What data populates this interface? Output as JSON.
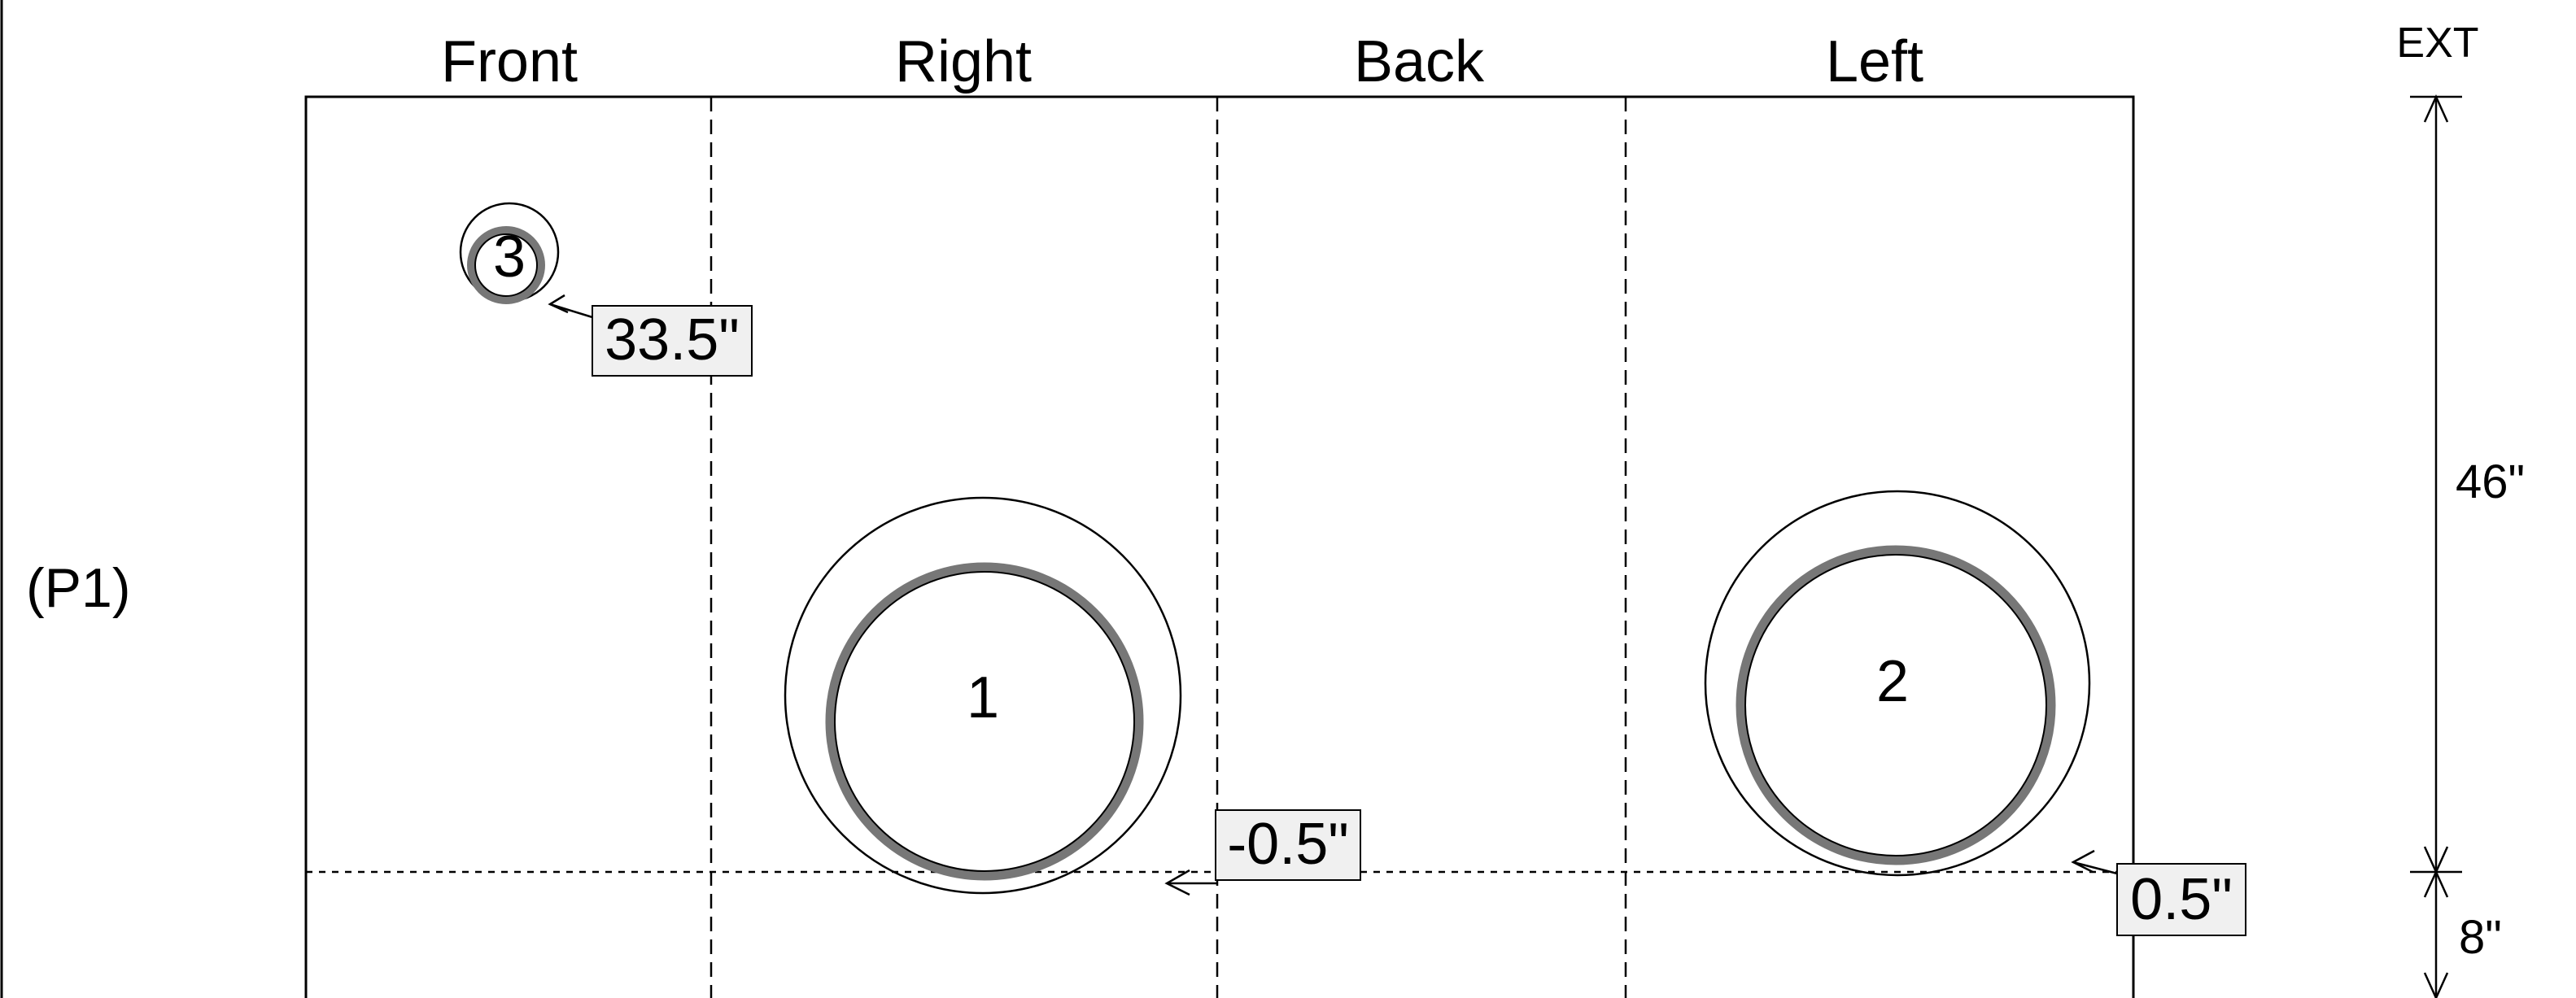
{
  "diagram": {
    "row_label": "(P1)",
    "side_labels": [
      "Front",
      "Right",
      "Back",
      "Left"
    ],
    "ext_label": "EXT",
    "dimensions": {
      "upper": "46\"",
      "lower": "8\""
    },
    "holes": [
      {
        "number": "1",
        "offset_label": "-0.5\""
      },
      {
        "number": "2",
        "offset_label": "0.5\""
      },
      {
        "number": "3",
        "offset_label": "33.5\""
      }
    ]
  }
}
